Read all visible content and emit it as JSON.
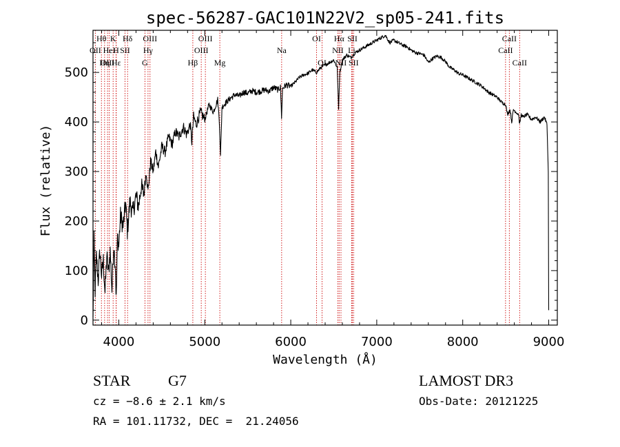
{
  "chart_data": {
    "type": "line",
    "title": "spec-56287-GAC101N22V2_sp05-241.fits",
    "xlabel": "Wavelength (Å)",
    "ylabel": "Flux (relative)",
    "xlim": [
      3700,
      9100
    ],
    "ylim": [
      -10,
      585
    ],
    "xticks": [
      4000,
      5000,
      6000,
      7000,
      8000,
      9000
    ],
    "yticks": [
      0,
      100,
      200,
      300,
      400,
      500
    ],
    "grid": false,
    "line_color": "#000000",
    "marker_color": "#cc0000",
    "series": [
      {
        "name": "spectrum",
        "points": [
          [
            3700,
            0
          ],
          [
            3712,
            160
          ],
          [
            3725,
            60
          ],
          [
            3740,
            130
          ],
          [
            3760,
            80
          ],
          [
            3780,
            140
          ],
          [
            3800,
            90
          ],
          [
            3820,
            120
          ],
          [
            3840,
            55
          ],
          [
            3860,
            130
          ],
          [
            3880,
            95
          ],
          [
            3900,
            140
          ],
          [
            3920,
            60
          ],
          [
            3940,
            150
          ],
          [
            3960,
            110
          ],
          [
            3970,
            40
          ],
          [
            3985,
            170
          ],
          [
            4000,
            150
          ],
          [
            4020,
            210
          ],
          [
            4050,
            190
          ],
          [
            4080,
            235
          ],
          [
            4100,
            180
          ],
          [
            4130,
            240
          ],
          [
            4160,
            215
          ],
          [
            4200,
            250
          ],
          [
            4230,
            230
          ],
          [
            4260,
            270
          ],
          [
            4290,
            255
          ],
          [
            4320,
            300
          ],
          [
            4340,
            260
          ],
          [
            4370,
            320
          ],
          [
            4400,
            300
          ],
          [
            4430,
            340
          ],
          [
            4460,
            310
          ],
          [
            4500,
            350
          ],
          [
            4540,
            340
          ],
          [
            4580,
            370
          ],
          [
            4620,
            355
          ],
          [
            4660,
            380
          ],
          [
            4700,
            370
          ],
          [
            4750,
            390
          ],
          [
            4790,
            375
          ],
          [
            4830,
            395
          ],
          [
            4850,
            360
          ],
          [
            4870,
            410
          ],
          [
            4900,
            395
          ],
          [
            4950,
            420
          ],
          [
            5000,
            405
          ],
          [
            5050,
            435
          ],
          [
            5100,
            420
          ],
          [
            5150,
            445
          ],
          [
            5170,
            400
          ],
          [
            5183,
            330
          ],
          [
            5200,
            430
          ],
          [
            5250,
            440
          ],
          [
            5300,
            448
          ],
          [
            5350,
            455
          ],
          [
            5400,
            452
          ],
          [
            5450,
            460
          ],
          [
            5500,
            458
          ],
          [
            5550,
            463
          ],
          [
            5600,
            460
          ],
          [
            5650,
            462
          ],
          [
            5700,
            465
          ],
          [
            5750,
            462
          ],
          [
            5800,
            470
          ],
          [
            5850,
            465
          ],
          [
            5880,
            470
          ],
          [
            5893,
            410
          ],
          [
            5905,
            468
          ],
          [
            5950,
            475
          ],
          [
            6000,
            472
          ],
          [
            6050,
            480
          ],
          [
            6100,
            490
          ],
          [
            6150,
            495
          ],
          [
            6200,
            498
          ],
          [
            6250,
            505
          ],
          [
            6300,
            500
          ],
          [
            6350,
            510
          ],
          [
            6400,
            515
          ],
          [
            6450,
            520
          ],
          [
            6500,
            525
          ],
          [
            6540,
            510
          ],
          [
            6556,
            425
          ],
          [
            6570,
            500
          ],
          [
            6600,
            525
          ],
          [
            6650,
            535
          ],
          [
            6700,
            530
          ],
          [
            6750,
            540
          ],
          [
            6800,
            545
          ],
          [
            6850,
            550
          ],
          [
            6900,
            555
          ],
          [
            6950,
            560
          ],
          [
            7000,
            565
          ],
          [
            7050,
            570
          ],
          [
            7100,
            575
          ],
          [
            7150,
            560
          ],
          [
            7200,
            565
          ],
          [
            7250,
            560
          ],
          [
            7300,
            555
          ],
          [
            7350,
            552
          ],
          [
            7400,
            545
          ],
          [
            7450,
            540
          ],
          [
            7500,
            538
          ],
          [
            7550,
            535
          ],
          [
            7600,
            520
          ],
          [
            7650,
            528
          ],
          [
            7700,
            533
          ],
          [
            7750,
            530
          ],
          [
            7800,
            522
          ],
          [
            7850,
            510
          ],
          [
            7900,
            505
          ],
          [
            7950,
            498
          ],
          [
            8000,
            495
          ],
          [
            8050,
            490
          ],
          [
            8100,
            485
          ],
          [
            8150,
            480
          ],
          [
            8200,
            475
          ],
          [
            8250,
            468
          ],
          [
            8300,
            460
          ],
          [
            8350,
            455
          ],
          [
            8400,
            450
          ],
          [
            8450,
            440
          ],
          [
            8500,
            435
          ],
          [
            8520,
            415
          ],
          [
            8550,
            425
          ],
          [
            8570,
            400
          ],
          [
            8590,
            425
          ],
          [
            8620,
            420
          ],
          [
            8650,
            415
          ],
          [
            8662,
            395
          ],
          [
            8680,
            415
          ],
          [
            8700,
            410
          ],
          [
            8750,
            415
          ],
          [
            8800,
            405
          ],
          [
            8850,
            410
          ],
          [
            8900,
            400
          ],
          [
            8950,
            410
          ],
          [
            8980,
            395
          ],
          [
            8995,
            300
          ],
          [
            9000,
            20
          ]
        ]
      }
    ],
    "line_markers": [
      {
        "label": "Hθ",
        "wavelength": 3798,
        "row": 0
      },
      {
        "label": "OII",
        "wavelength": 3727,
        "row": 1
      },
      {
        "label": "OIII",
        "wavelength": 3869,
        "row": 2
      },
      {
        "label": "K",
        "wavelength": 3934,
        "row": 0
      },
      {
        "label": "Hε",
        "wavelength": 3970,
        "row": 2
      },
      {
        "label": "HeI",
        "wavelength": 3889,
        "row": 1
      },
      {
        "label": "H",
        "wavelength": 3968,
        "row": 1
      },
      {
        "label": "Hη",
        "wavelength": 3835,
        "row": 2
      },
      {
        "label": "Hδ",
        "wavelength": 4102,
        "row": 0
      },
      {
        "label": "SII",
        "wavelength": 4072,
        "row": 1
      },
      {
        "label": "OIII",
        "wavelength": 4363,
        "row": 0
      },
      {
        "label": "Hγ",
        "wavelength": 4340,
        "row": 1
      },
      {
        "label": "G",
        "wavelength": 4304,
        "row": 2
      },
      {
        "label": "Hβ",
        "wavelength": 4861,
        "row": 2
      },
      {
        "label": "OIII",
        "wavelength": 5007,
        "row": 0
      },
      {
        "label": "OIII",
        "wavelength": 4959,
        "row": 1
      },
      {
        "label": "Mg",
        "wavelength": 5175,
        "row": 2
      },
      {
        "label": "Na",
        "wavelength": 5894,
        "row": 1
      },
      {
        "label": "OI",
        "wavelength": 6300,
        "row": 0
      },
      {
        "label": "OI",
        "wavelength": 6364,
        "row": 2
      },
      {
        "label": "Hα",
        "wavelength": 6563,
        "row": 0
      },
      {
        "label": "NII",
        "wavelength": 6548,
        "row": 1
      },
      {
        "label": "NII",
        "wavelength": 6584,
        "row": 2
      },
      {
        "label": "SII",
        "wavelength": 6717,
        "row": 0
      },
      {
        "label": "Li",
        "wavelength": 6708,
        "row": 1
      },
      {
        "label": "SII",
        "wavelength": 6731,
        "row": 2
      },
      {
        "label": "CaII",
        "wavelength": 8542,
        "row": 0
      },
      {
        "label": "CaII",
        "wavelength": 8498,
        "row": 1
      },
      {
        "label": "CaII",
        "wavelength": 8662,
        "row": 2
      }
    ]
  },
  "info": {
    "object_class": "STAR",
    "subclass": "G7",
    "survey": "LAMOST DR3",
    "cz": "cz = −8.6 ± 2.1 km/s",
    "obs_date": "Obs-Date: 20121225",
    "coords": "RA = 101.11732, DEC =  21.24056"
  }
}
